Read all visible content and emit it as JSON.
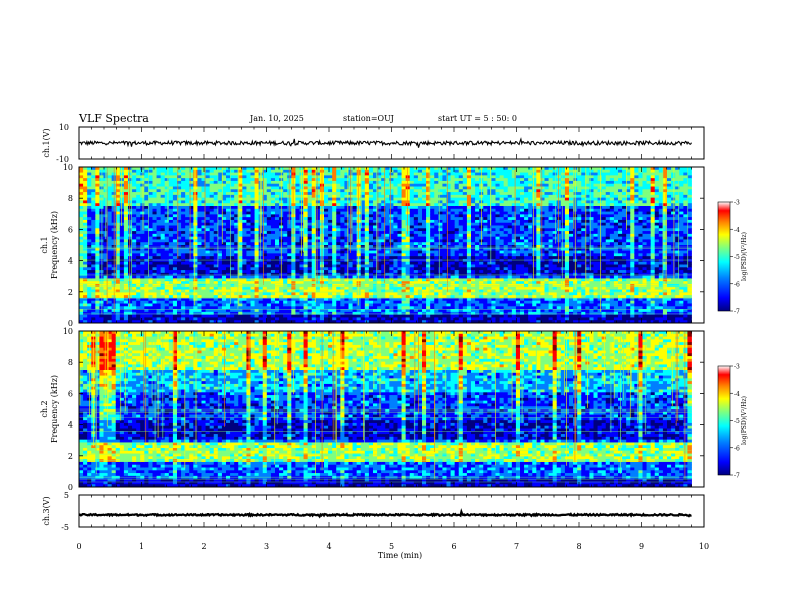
{
  "header": {
    "title": "VLF Spectra",
    "date": "Jan. 10, 2025",
    "station": "station=OUJ",
    "start_ut": "start UT =  5 : 50: 0"
  },
  "chart_data": [
    {
      "type": "line",
      "panel": "ch1-waveform",
      "ylabel": "ch.1(V)",
      "ylim": [
        -10,
        10
      ],
      "yticks": [
        "10",
        "-10"
      ],
      "xlim": [
        0,
        10
      ],
      "baseline": 0,
      "noise_amplitude": 1.2
    },
    {
      "type": "heatmap",
      "panel": "ch1-spectrogram",
      "ylabel": "Frequency (kHz)",
      "channel_label": "ch.1",
      "xlim": [
        0,
        10
      ],
      "data_end_min": 9.8,
      "ylim": [
        0,
        10
      ],
      "yticks": [
        "0",
        "2",
        "4",
        "6",
        "8",
        "10"
      ],
      "colorbar": {
        "label": "log(PSD)(V²/Hz)",
        "range": [
          -7,
          -3
        ],
        "ticks": [
          "-3",
          "-4",
          "-5",
          "-6",
          "-7"
        ]
      }
    },
    {
      "type": "heatmap",
      "panel": "ch2-spectrogram",
      "ylabel": "Frequency (kHz)",
      "channel_label": "ch.2",
      "xlim": [
        0,
        10
      ],
      "data_end_min": 9.8,
      "ylim": [
        0,
        10
      ],
      "yticks": [
        "0",
        "2",
        "4",
        "6",
        "8",
        "10"
      ],
      "colorbar": {
        "label": "log(PSD)(V²/Hz)",
        "range": [
          -7,
          -3
        ],
        "ticks": [
          "-3",
          "-4",
          "-5",
          "-6",
          "-7"
        ]
      }
    },
    {
      "type": "line",
      "panel": "ch3-waveform",
      "ylabel": "ch.3(V)",
      "ylim": [
        -5,
        5
      ],
      "yticks": [
        "5",
        "-5"
      ],
      "xlim": [
        0,
        10
      ],
      "baseline": -1.2,
      "noise_amplitude": 0.25
    }
  ],
  "xaxis": {
    "label": "Time (min)",
    "ticks": [
      "0",
      "1",
      "2",
      "3",
      "4",
      "5",
      "6",
      "7",
      "8",
      "9",
      "10"
    ]
  },
  "colormap": [
    "#00007f",
    "#0000ff",
    "#007fff",
    "#00ffff",
    "#7fff7f",
    "#ffff00",
    "#ff7f00",
    "#ff0000",
    "#7f0000",
    "#ffffff"
  ]
}
